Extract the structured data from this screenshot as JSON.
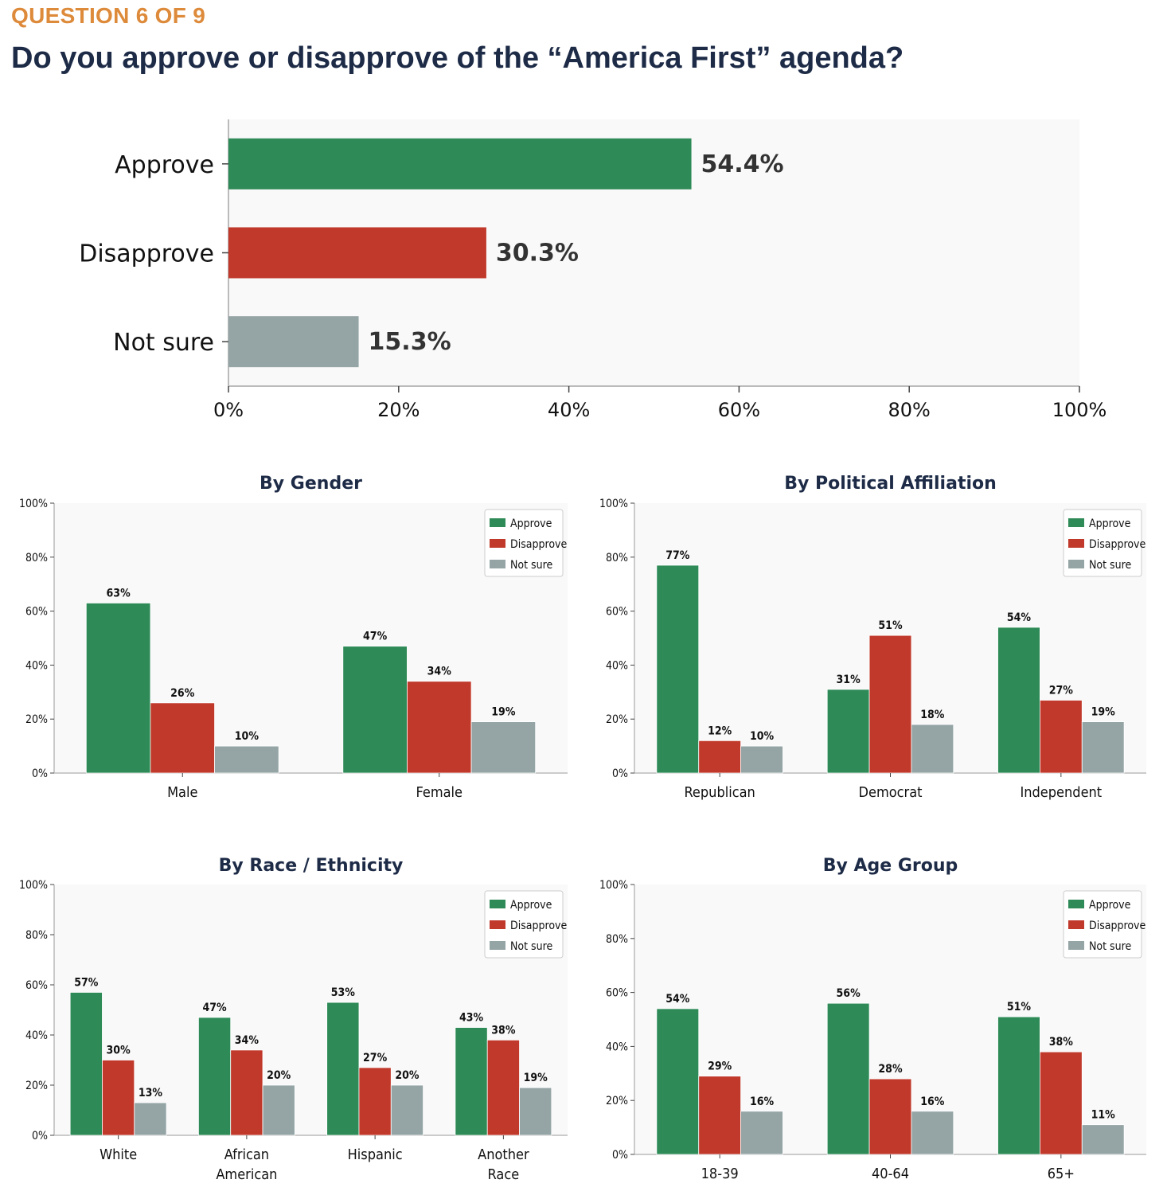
{
  "header": {
    "question_number": "QUESTION 6 OF 9",
    "question": "Do you approve or disapprove of the “America First” agenda?"
  },
  "colors": {
    "approve": "#2e8a57",
    "disapprove": "#c0392b",
    "not_sure": "#95a5a6",
    "plot_bg": "#f9f9f9",
    "accent": "#dd8a3a",
    "title": "#1d2b47"
  },
  "chart_data": [
    {
      "id": "overall",
      "type": "bar",
      "orientation": "horizontal",
      "title": "",
      "categories": [
        "Approve",
        "Disapprove",
        "Not sure"
      ],
      "values": [
        54.4,
        30.3,
        15.3
      ],
      "value_labels": [
        "54.4%",
        "30.3%",
        "15.3%"
      ],
      "bar_colors": [
        "#2e8a57",
        "#c0392b",
        "#95a5a6"
      ],
      "xlim": [
        0,
        100
      ],
      "xticks": [
        0,
        20,
        40,
        60,
        80,
        100
      ],
      "xtick_labels": [
        "0%",
        "20%",
        "40%",
        "60%",
        "80%",
        "100%"
      ],
      "grid": false
    },
    {
      "id": "gender",
      "type": "bar",
      "title": "By Gender",
      "categories": [
        [
          "Male"
        ],
        [
          "Female"
        ]
      ],
      "series": [
        {
          "name": "Approve",
          "values": [
            63,
            47
          ],
          "labels": [
            "63%",
            "47%"
          ]
        },
        {
          "name": "Disapprove",
          "values": [
            26,
            34
          ],
          "labels": [
            "26%",
            "34%"
          ]
        },
        {
          "name": "Not sure",
          "values": [
            10,
            19
          ],
          "labels": [
            "10%",
            "19%"
          ]
        }
      ],
      "ylim": [
        0,
        100
      ],
      "yticks": [
        0,
        20,
        40,
        60,
        80,
        100
      ],
      "ytick_labels": [
        "0%",
        "20%",
        "40%",
        "60%",
        "80%",
        "100%"
      ],
      "legend": "top-right",
      "grid": false
    },
    {
      "id": "party",
      "type": "bar",
      "title": "By Political Affiliation",
      "categories": [
        [
          "Republican"
        ],
        [
          "Democrat"
        ],
        [
          "Independent"
        ]
      ],
      "series": [
        {
          "name": "Approve",
          "values": [
            77,
            31,
            54
          ],
          "labels": [
            "77%",
            "31%",
            "54%"
          ]
        },
        {
          "name": "Disapprove",
          "values": [
            12,
            51,
            27
          ],
          "labels": [
            "12%",
            "51%",
            "27%"
          ]
        },
        {
          "name": "Not sure",
          "values": [
            10,
            18,
            19
          ],
          "labels": [
            "10%",
            "18%",
            "19%"
          ]
        }
      ],
      "ylim": [
        0,
        100
      ],
      "yticks": [
        0,
        20,
        40,
        60,
        80,
        100
      ],
      "ytick_labels": [
        "0%",
        "20%",
        "40%",
        "60%",
        "80%",
        "100%"
      ],
      "legend": "top-right",
      "grid": false
    },
    {
      "id": "race",
      "type": "bar",
      "title": "By Race / Ethnicity",
      "categories": [
        [
          "White"
        ],
        [
          "African",
          "American"
        ],
        [
          "Hispanic"
        ],
        [
          "Another",
          "Race"
        ]
      ],
      "series": [
        {
          "name": "Approve",
          "values": [
            57,
            47,
            53,
            43
          ],
          "labels": [
            "57%",
            "47%",
            "53%",
            "43%"
          ]
        },
        {
          "name": "Disapprove",
          "values": [
            30,
            34,
            27,
            38
          ],
          "labels": [
            "30%",
            "34%",
            "27%",
            "38%"
          ]
        },
        {
          "name": "Not sure",
          "values": [
            13,
            20,
            20,
            19
          ],
          "labels": [
            "13%",
            "20%",
            "20%",
            "19%"
          ]
        }
      ],
      "ylim": [
        0,
        100
      ],
      "yticks": [
        0,
        20,
        40,
        60,
        80,
        100
      ],
      "ytick_labels": [
        "0%",
        "20%",
        "40%",
        "60%",
        "80%",
        "100%"
      ],
      "legend": "top-right",
      "grid": false
    },
    {
      "id": "age",
      "type": "bar",
      "title": "By Age Group",
      "categories": [
        [
          "18-39"
        ],
        [
          "40-64"
        ],
        [
          "65+"
        ]
      ],
      "series": [
        {
          "name": "Approve",
          "values": [
            54,
            56,
            51
          ],
          "labels": [
            "54%",
            "56%",
            "51%"
          ]
        },
        {
          "name": "Disapprove",
          "values": [
            29,
            28,
            38
          ],
          "labels": [
            "29%",
            "28%",
            "38%"
          ]
        },
        {
          "name": "Not sure",
          "values": [
            16,
            16,
            11
          ],
          "labels": [
            "16%",
            "16%",
            "11%"
          ]
        }
      ],
      "ylim": [
        0,
        100
      ],
      "yticks": [
        0,
        20,
        40,
        60,
        80,
        100
      ],
      "ytick_labels": [
        "0%",
        "20%",
        "40%",
        "60%",
        "80%",
        "100%"
      ],
      "legend": "top-right",
      "grid": false
    }
  ]
}
